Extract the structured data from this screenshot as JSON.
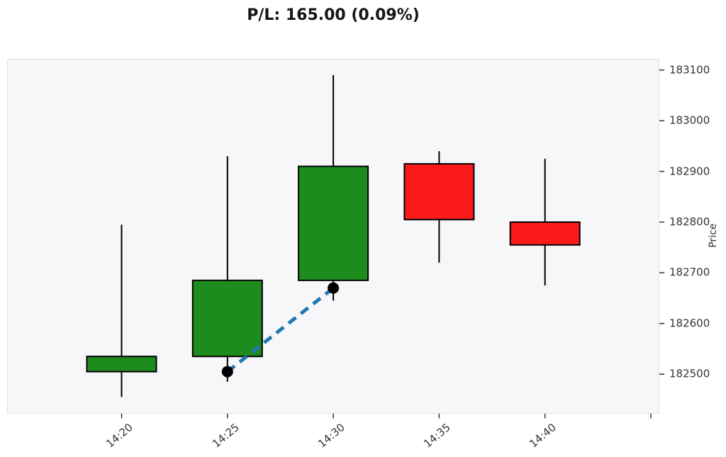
{
  "title": "P/L: 165.00 (0.09%)",
  "chart_data": {
    "type": "candlestick",
    "title": "P/L: 165.00 (0.09%)",
    "xlabel": "",
    "ylabel": "Price",
    "x_categories": [
      "14:20",
      "14:25",
      "14:30",
      "14:35",
      "14:40"
    ],
    "y_ticks": [
      183100,
      183000,
      182900,
      182800,
      182700,
      182600,
      182500
    ],
    "ylim": [
      182422,
      183122
    ],
    "grid": false,
    "y_axis_side": "right",
    "candles": [
      {
        "time": "14:20",
        "open": 182505,
        "high": 182795,
        "low": 182455,
        "close": 182535,
        "direction": "up"
      },
      {
        "time": "14:25",
        "open": 182535,
        "high": 182930,
        "low": 182485,
        "close": 182685,
        "direction": "up"
      },
      {
        "time": "14:30",
        "open": 182685,
        "high": 183090,
        "low": 182645,
        "close": 182910,
        "direction": "up"
      },
      {
        "time": "14:35",
        "open": 182915,
        "high": 182940,
        "low": 182720,
        "close": 182805,
        "direction": "down"
      },
      {
        "time": "14:40",
        "open": 182800,
        "high": 182925,
        "low": 182675,
        "close": 182755,
        "direction": "down"
      }
    ],
    "trade_line": {
      "entry": {
        "time": "14:25",
        "price": 182505
      },
      "exit": {
        "time": "14:30",
        "price": 182670
      },
      "style": "dashed",
      "color": "#1f77b4",
      "marker_color": "#000000"
    },
    "unlabeled_extra_x_tick": true,
    "colors": {
      "up": "#1e8b1e",
      "down": "#fa1a1a",
      "candle_edge": "#000000",
      "wick": "#000000",
      "plot_bg": "#f7f7f9",
      "figure_bg": "#ffffff",
      "tick_text": "#333333",
      "tick_mark": "#333333",
      "title_text": "#151515"
    }
  }
}
